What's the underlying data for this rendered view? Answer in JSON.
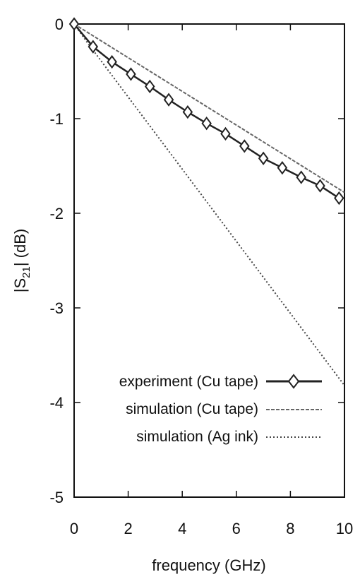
{
  "chart_data": {
    "type": "line",
    "xlabel": "frequency (GHz)",
    "ylabel_parts": {
      "pre": "|S",
      "sub": "21",
      "post": "| (dB)"
    },
    "xlim": [
      0,
      10
    ],
    "ylim": [
      -5,
      0
    ],
    "xticks": [
      0,
      2,
      4,
      6,
      8,
      10
    ],
    "xtick_labels": [
      "0",
      "2",
      "4",
      "6",
      "8",
      "10"
    ],
    "yticks": [
      0,
      -1,
      -2,
      -3,
      -4,
      -5
    ],
    "ytick_labels": [
      "0",
      "-1",
      "-2",
      "-3",
      "-4",
      "-5"
    ],
    "grid": false,
    "legend_position": "bottom-right",
    "series": [
      {
        "name": "experiment (Cu tape)",
        "style": "solid-diamond",
        "color": "#222222",
        "x": [
          0,
          0.7,
          1.4,
          2.1,
          2.8,
          3.5,
          4.2,
          4.9,
          5.6,
          6.3,
          7.0,
          7.7,
          8.4,
          9.1,
          9.8
        ],
        "y": [
          0,
          -0.24,
          -0.4,
          -0.53,
          -0.66,
          -0.8,
          -0.93,
          -1.05,
          -1.16,
          -1.29,
          -1.42,
          -1.52,
          -1.62,
          -1.71,
          -1.84
        ]
      },
      {
        "name": "simulation  (Cu tape)",
        "style": "dashed",
        "color": "#666666",
        "x": [
          0,
          10
        ],
        "y": [
          0,
          -1.78
        ]
      },
      {
        "name": "simulation   (Ag ink)",
        "style": "dotted",
        "color": "#444444",
        "x": [
          0,
          0.5,
          10
        ],
        "y": [
          0,
          -0.2,
          -3.82
        ]
      }
    ]
  }
}
